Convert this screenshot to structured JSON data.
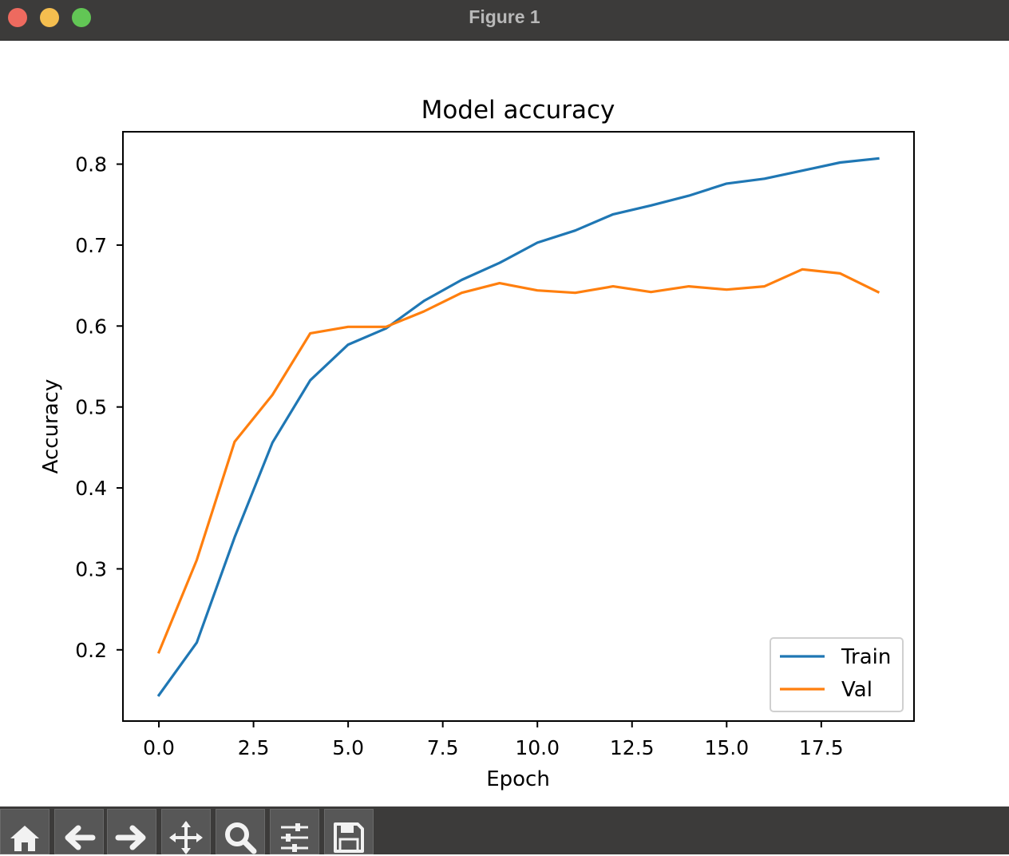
{
  "window": {
    "title": "Figure 1"
  },
  "toolbar": {
    "buttons": [
      {
        "icon": "home-icon"
      },
      {
        "icon": "back-arrow-icon"
      },
      {
        "icon": "forward-arrow-icon"
      },
      {
        "icon": "pan-icon"
      },
      {
        "icon": "zoom-icon"
      },
      {
        "icon": "configure-subplots-icon"
      },
      {
        "icon": "save-icon"
      }
    ]
  },
  "chart_data": {
    "type": "line",
    "title": "Model accuracy",
    "xlabel": "Epoch",
    "ylabel": "Accuracy",
    "xlim": [
      -0.95,
      19.95
    ],
    "ylim": [
      0.112,
      0.84
    ],
    "xticks": [
      0.0,
      2.5,
      5.0,
      7.5,
      10.0,
      12.5,
      15.0,
      17.5
    ],
    "xtick_labels": [
      "0.0",
      "2.5",
      "5.0",
      "7.5",
      "10.0",
      "12.5",
      "15.0",
      "17.5"
    ],
    "yticks": [
      0.2,
      0.3,
      0.4,
      0.5,
      0.6,
      0.7,
      0.8
    ],
    "ytick_labels": [
      "0.2",
      "0.3",
      "0.4",
      "0.5",
      "0.6",
      "0.7",
      "0.8"
    ],
    "grid": false,
    "legend_position": "lower-right",
    "x": [
      0,
      1,
      2,
      3,
      4,
      5,
      6,
      7,
      8,
      9,
      10,
      11,
      12,
      13,
      14,
      15,
      16,
      17,
      18,
      19
    ],
    "series": [
      {
        "name": "Train",
        "color": "#1f77b4",
        "values": [
          0.144,
          0.209,
          0.339,
          0.456,
          0.533,
          0.577,
          0.597,
          0.631,
          0.657,
          0.678,
          0.703,
          0.718,
          0.738,
          0.749,
          0.761,
          0.776,
          0.782,
          0.792,
          0.802,
          0.807
        ]
      },
      {
        "name": "Val",
        "color": "#ff7f0e",
        "values": [
          0.197,
          0.311,
          0.457,
          0.515,
          0.591,
          0.599,
          0.599,
          0.618,
          0.641,
          0.653,
          0.644,
          0.641,
          0.649,
          0.642,
          0.649,
          0.645,
          0.649,
          0.67,
          0.665,
          0.642
        ]
      }
    ]
  }
}
